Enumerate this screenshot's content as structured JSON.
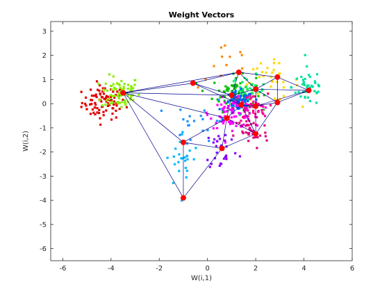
{
  "chart_data": {
    "type": "scatter",
    "title": "Weight Vectors",
    "xlabel": "W(i,1)",
    "ylabel": "W(i,2)",
    "xlim": [
      -6.5,
      6
    ],
    "ylim": [
      -6.5,
      3.4
    ],
    "xticks": [
      -6,
      -4,
      -2,
      0,
      2,
      4,
      6
    ],
    "yticks": [
      -6,
      -5,
      -4,
      -3,
      -2,
      -1,
      0,
      1,
      2,
      3
    ],
    "grid": false,
    "clusters": [
      {
        "color": "#e00000",
        "cx": -4.3,
        "cy": 0.05,
        "sx": 0.45,
        "sy": 0.35,
        "n": 90
      },
      {
        "color": "#88ee00",
        "cx": -3.6,
        "cy": 0.45,
        "sx": 0.4,
        "sy": 0.35,
        "n": 80
      },
      {
        "color": "#00c000",
        "cx": 1.1,
        "cy": 0.45,
        "sx": 0.45,
        "sy": 0.35,
        "n": 80
      },
      {
        "color": "#00ee66",
        "cx": 1.7,
        "cy": 0.55,
        "sx": 0.35,
        "sy": 0.3,
        "n": 40
      },
      {
        "color": "#ffd800",
        "cx": 2.6,
        "cy": 0.9,
        "sx": 0.6,
        "sy": 0.4,
        "n": 35
      },
      {
        "color": "#ff8800",
        "cx": 0.8,
        "cy": 1.6,
        "sx": 0.6,
        "sy": 0.5,
        "n": 12
      },
      {
        "color": "#00e0a0",
        "cx": 4.2,
        "cy": 0.7,
        "sx": 0.35,
        "sy": 0.4,
        "n": 45
      },
      {
        "color": "#0060ff",
        "cx": 1.3,
        "cy": 0.0,
        "sx": 0.3,
        "sy": 0.25,
        "n": 70
      },
      {
        "color": "#2090ff",
        "cx": -0.2,
        "cy": -0.8,
        "sx": 0.6,
        "sy": 0.5,
        "n": 20
      },
      {
        "color": "#ff00ff",
        "cx": 1.0,
        "cy": -0.4,
        "sx": 0.45,
        "sy": 0.3,
        "n": 70
      },
      {
        "color": "#ff0090",
        "cx": 1.8,
        "cy": -0.2,
        "sx": 0.35,
        "sy": 0.3,
        "n": 50
      },
      {
        "color": "#e0007a",
        "cx": 1.8,
        "cy": -1.2,
        "sx": 0.35,
        "sy": 0.35,
        "n": 35
      },
      {
        "color": "#8800ff",
        "cx": 0.6,
        "cy": -1.9,
        "sx": 0.35,
        "sy": 0.45,
        "n": 30
      },
      {
        "color": "#00b8ff",
        "cx": -1.0,
        "cy": -2.3,
        "sx": 0.35,
        "sy": 0.6,
        "n": 25
      }
    ],
    "neurons": [
      {
        "x": -3.5,
        "y": 0.45
      },
      {
        "x": -0.6,
        "y": 0.85
      },
      {
        "x": 1.0,
        "y": 0.35
      },
      {
        "x": 1.3,
        "y": 1.3
      },
      {
        "x": 2.0,
        "y": 0.6
      },
      {
        "x": 2.9,
        "y": 1.1
      },
      {
        "x": 4.2,
        "y": 0.55
      },
      {
        "x": 1.4,
        "y": -0.05
      },
      {
        "x": 2.0,
        "y": -0.1
      },
      {
        "x": 2.9,
        "y": 0.05
      },
      {
        "x": 0.8,
        "y": -0.6
      },
      {
        "x": 2.0,
        "y": -1.25
      },
      {
        "x": 0.6,
        "y": -1.85
      },
      {
        "x": -1.0,
        "y": -1.6
      },
      {
        "x": -1.0,
        "y": -3.9
      }
    ],
    "edges": [
      [
        0,
        1
      ],
      [
        0,
        2
      ],
      [
        0,
        3
      ],
      [
        0,
        13
      ],
      [
        0,
        14
      ],
      [
        0,
        10
      ],
      [
        1,
        2
      ],
      [
        1,
        3
      ],
      [
        1,
        7
      ],
      [
        2,
        3
      ],
      [
        2,
        4
      ],
      [
        2,
        7
      ],
      [
        2,
        10
      ],
      [
        3,
        4
      ],
      [
        3,
        5
      ],
      [
        4,
        5
      ],
      [
        4,
        6
      ],
      [
        4,
        8
      ],
      [
        4,
        9
      ],
      [
        5,
        6
      ],
      [
        5,
        9
      ],
      [
        6,
        8
      ],
      [
        6,
        9
      ],
      [
        7,
        8
      ],
      [
        7,
        10
      ],
      [
        7,
        11
      ],
      [
        8,
        9
      ],
      [
        8,
        11
      ],
      [
        10,
        11
      ],
      [
        10,
        12
      ],
      [
        10,
        13
      ],
      [
        11,
        12
      ],
      [
        11,
        9
      ],
      [
        12,
        13
      ],
      [
        12,
        14
      ],
      [
        13,
        14
      ]
    ]
  }
}
